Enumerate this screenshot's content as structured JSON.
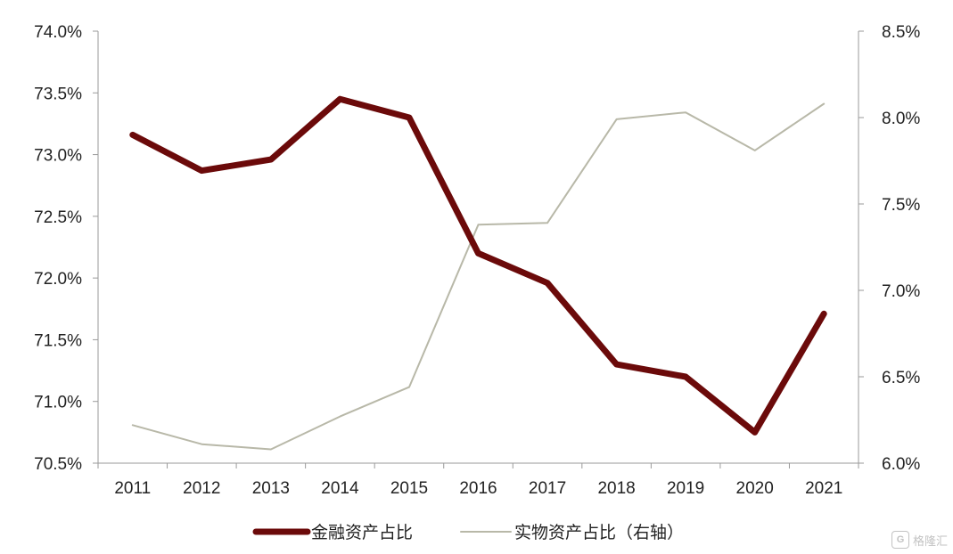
{
  "chart_data": {
    "type": "line",
    "title": "",
    "categories": [
      "2011",
      "2012",
      "2013",
      "2014",
      "2015",
      "2016",
      "2017",
      "2018",
      "2019",
      "2020",
      "2021"
    ],
    "y_left": {
      "ylim": [
        70.5,
        74.0
      ],
      "ticks": [
        70.5,
        71.0,
        71.5,
        72.0,
        72.5,
        73.0,
        73.5,
        74.0
      ],
      "tick_labels": [
        "70.5%",
        "71.0%",
        "71.5%",
        "72.0%",
        "72.5%",
        "73.0%",
        "73.5%",
        "74.0%"
      ]
    },
    "y_right": {
      "ylim": [
        6.0,
        8.5
      ],
      "ticks": [
        6.0,
        6.5,
        7.0,
        7.5,
        8.0,
        8.5
      ],
      "tick_labels": [
        "6.0%",
        "6.5%",
        "7.0%",
        "7.5%",
        "8.0%",
        "8.5%"
      ]
    },
    "series": [
      {
        "name": "金融资产占比",
        "axis": "left",
        "color": "#6b0a0a",
        "width": "thick",
        "values": [
          73.16,
          72.87,
          72.96,
          73.45,
          73.3,
          72.2,
          71.96,
          71.3,
          71.2,
          70.75,
          71.71
        ]
      },
      {
        "name": "实物资产占比（右轴）",
        "axis": "right",
        "color": "#b8b8a8",
        "width": "thin",
        "values": [
          6.22,
          6.11,
          6.08,
          6.27,
          6.44,
          7.38,
          7.39,
          7.99,
          8.03,
          7.81,
          8.08
        ]
      }
    ],
    "grid": false,
    "legend_position": "bottom"
  },
  "watermark": {
    "logo_glyph": "G",
    "text": "格隆汇"
  }
}
